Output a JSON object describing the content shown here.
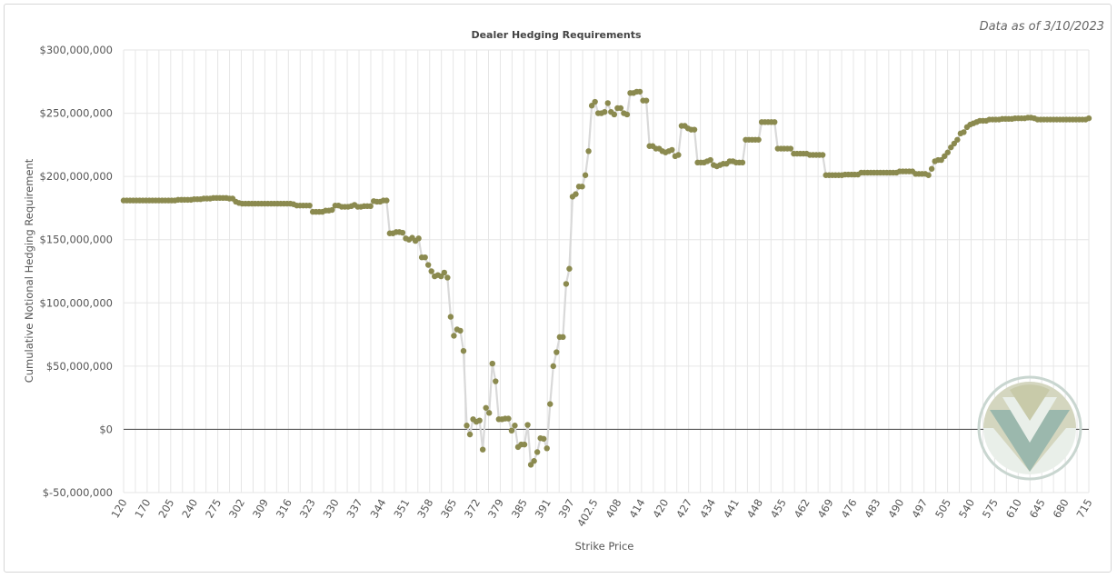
{
  "header": {
    "as_of": "Data as of 3/10/2023"
  },
  "chart_data": {
    "type": "scatter",
    "title": "Dealer Hedging Requirements",
    "xlabel": "Strike Price",
    "ylabel": "Cumulative Notional Hedging Requirement",
    "ylim": [
      -50000000,
      300000000
    ],
    "y_ticks": [
      300000000,
      250000000,
      200000000,
      150000000,
      100000000,
      50000000,
      0,
      -50000000
    ],
    "y_tick_labels": [
      "$300,000,000",
      "$250,000,000",
      "$200,000,000",
      "$150,000,000",
      "$100,000,000",
      "$50,000,000",
      "$0",
      "$-50,000,000"
    ],
    "x_tick_labels": [
      "120",
      "170",
      "205",
      "240",
      "275",
      "302",
      "309",
      "316",
      "323",
      "330",
      "337",
      "344",
      "351",
      "358",
      "365",
      "372",
      "379",
      "385",
      "391",
      "397",
      "402.5",
      "408",
      "414",
      "420",
      "427",
      "434",
      "441",
      "448",
      "455",
      "462",
      "469",
      "476",
      "483",
      "490",
      "497",
      "505",
      "540",
      "575",
      "610",
      "645",
      "680",
      "715"
    ],
    "grid": true,
    "colors": {
      "points": "#8b8a4f",
      "line": "#d9d9d9",
      "zero_line": "#555555",
      "grid": "#e6e6e6"
    },
    "series": [
      {
        "values": [
          181000000,
          181000000,
          181000000,
          181000000,
          181000000,
          181000000,
          181000000,
          181000000,
          181000000,
          181000000,
          181000000,
          181000000,
          181000000,
          181000000,
          181000000,
          181000000,
          181000000,
          181500000,
          181500000,
          181500000,
          181500000,
          181500000,
          182000000,
          182000000,
          182000000,
          182500000,
          182500000,
          182500000,
          183000000,
          183000000,
          183000000,
          183000000,
          183000000,
          182500000,
          182500000,
          180000000,
          179000000,
          178500000,
          178500000,
          178500000,
          178500000,
          178500000,
          178500000,
          178500000,
          178500000,
          178500000,
          178500000,
          178500000,
          178500000,
          178500000,
          178500000,
          178500000,
          178500000,
          178000000,
          177000000,
          177000000,
          177000000,
          177000000,
          177000000,
          172000000,
          172000000,
          172000000,
          172000000,
          173000000,
          173000000,
          173500000,
          177000000,
          177000000,
          176000000,
          176000000,
          176000000,
          176500000,
          177500000,
          176000000,
          176000000,
          176500000,
          176500000,
          176500000,
          180500000,
          180000000,
          180000000,
          181000000,
          181000000,
          155000000,
          155000000,
          156000000,
          156000000,
          155500000,
          151000000,
          150000000,
          151500000,
          149000000,
          151000000,
          136000000,
          136000000,
          130000000,
          125000000,
          121000000,
          122000000,
          121000000,
          124000000,
          120000000,
          89000000,
          74000000,
          79000000,
          78000000,
          62000000,
          3000000,
          -4000000,
          8000000,
          6000000,
          7000000,
          -16000000,
          17000000,
          13000000,
          52000000,
          38000000,
          8000000,
          8000000,
          8500000,
          8500000,
          -1000000,
          3000000,
          -14000000,
          -12000000,
          -12000000,
          3500000,
          -28000000,
          -25000000,
          -18000000,
          -7000000,
          -7500000,
          -15000000,
          20000000,
          50000000,
          61000000,
          73000000,
          73000000,
          115000000,
          127000000,
          184000000,
          186000000,
          192000000,
          192000000,
          201000000,
          220000000,
          256000000,
          259000000,
          250000000,
          250000000,
          251000000,
          258000000,
          251000000,
          249000000,
          254000000,
          254000000,
          250000000,
          249000000,
          266000000,
          266000000,
          267000000,
          267000000,
          260000000,
          260000000,
          224000000,
          224000000,
          222000000,
          222000000,
          220000000,
          219000000,
          220000000,
          221000000,
          216000000,
          217000000,
          240000000,
          240000000,
          238000000,
          237000000,
          237000000,
          211000000,
          211000000,
          211000000,
          212000000,
          213000000,
          209000000,
          208000000,
          209000000,
          210000000,
          210000000,
          212000000,
          212000000,
          211000000,
          211000000,
          211000000,
          229000000,
          229000000,
          229000000,
          229000000,
          229000000,
          243000000,
          243000000,
          243000000,
          243000000,
          243000000,
          222000000,
          222000000,
          222000000,
          222000000,
          222000000,
          218000000,
          218000000,
          218000000,
          218000000,
          218000000,
          217000000,
          217000000,
          217000000,
          217000000,
          217000000,
          201000000,
          201000000,
          201000000,
          201000000,
          201000000,
          201000000,
          201500000,
          201500000,
          201500000,
          201500000,
          201500000,
          203000000,
          203000000,
          203000000,
          203000000,
          203000000,
          203000000,
          203000000,
          203000000,
          203000000,
          203000000,
          203000000,
          203000000,
          204000000,
          204000000,
          204000000,
          204000000,
          204000000,
          202000000,
          202000000,
          202000000,
          202000000,
          201000000,
          206000000,
          212000000,
          213000000,
          213000000,
          216000000,
          219000000,
          223000000,
          226000000,
          229000000,
          234000000,
          235000000,
          239000000,
          241000000,
          242000000,
          243000000,
          244000000,
          244000000,
          244000000,
          245000000,
          245000000,
          245000000,
          245000000,
          245500000,
          245500000,
          245500000,
          245500000,
          246000000,
          246000000,
          246000000,
          246000000,
          246500000,
          246500000,
          246000000,
          245000000,
          245000000,
          245000000,
          245000000,
          245000000,
          245000000,
          245000000,
          245000000,
          245000000,
          245000000,
          245000000,
          245000000,
          245000000,
          245000000,
          245000000,
          245000000,
          246000000
        ]
      }
    ]
  }
}
